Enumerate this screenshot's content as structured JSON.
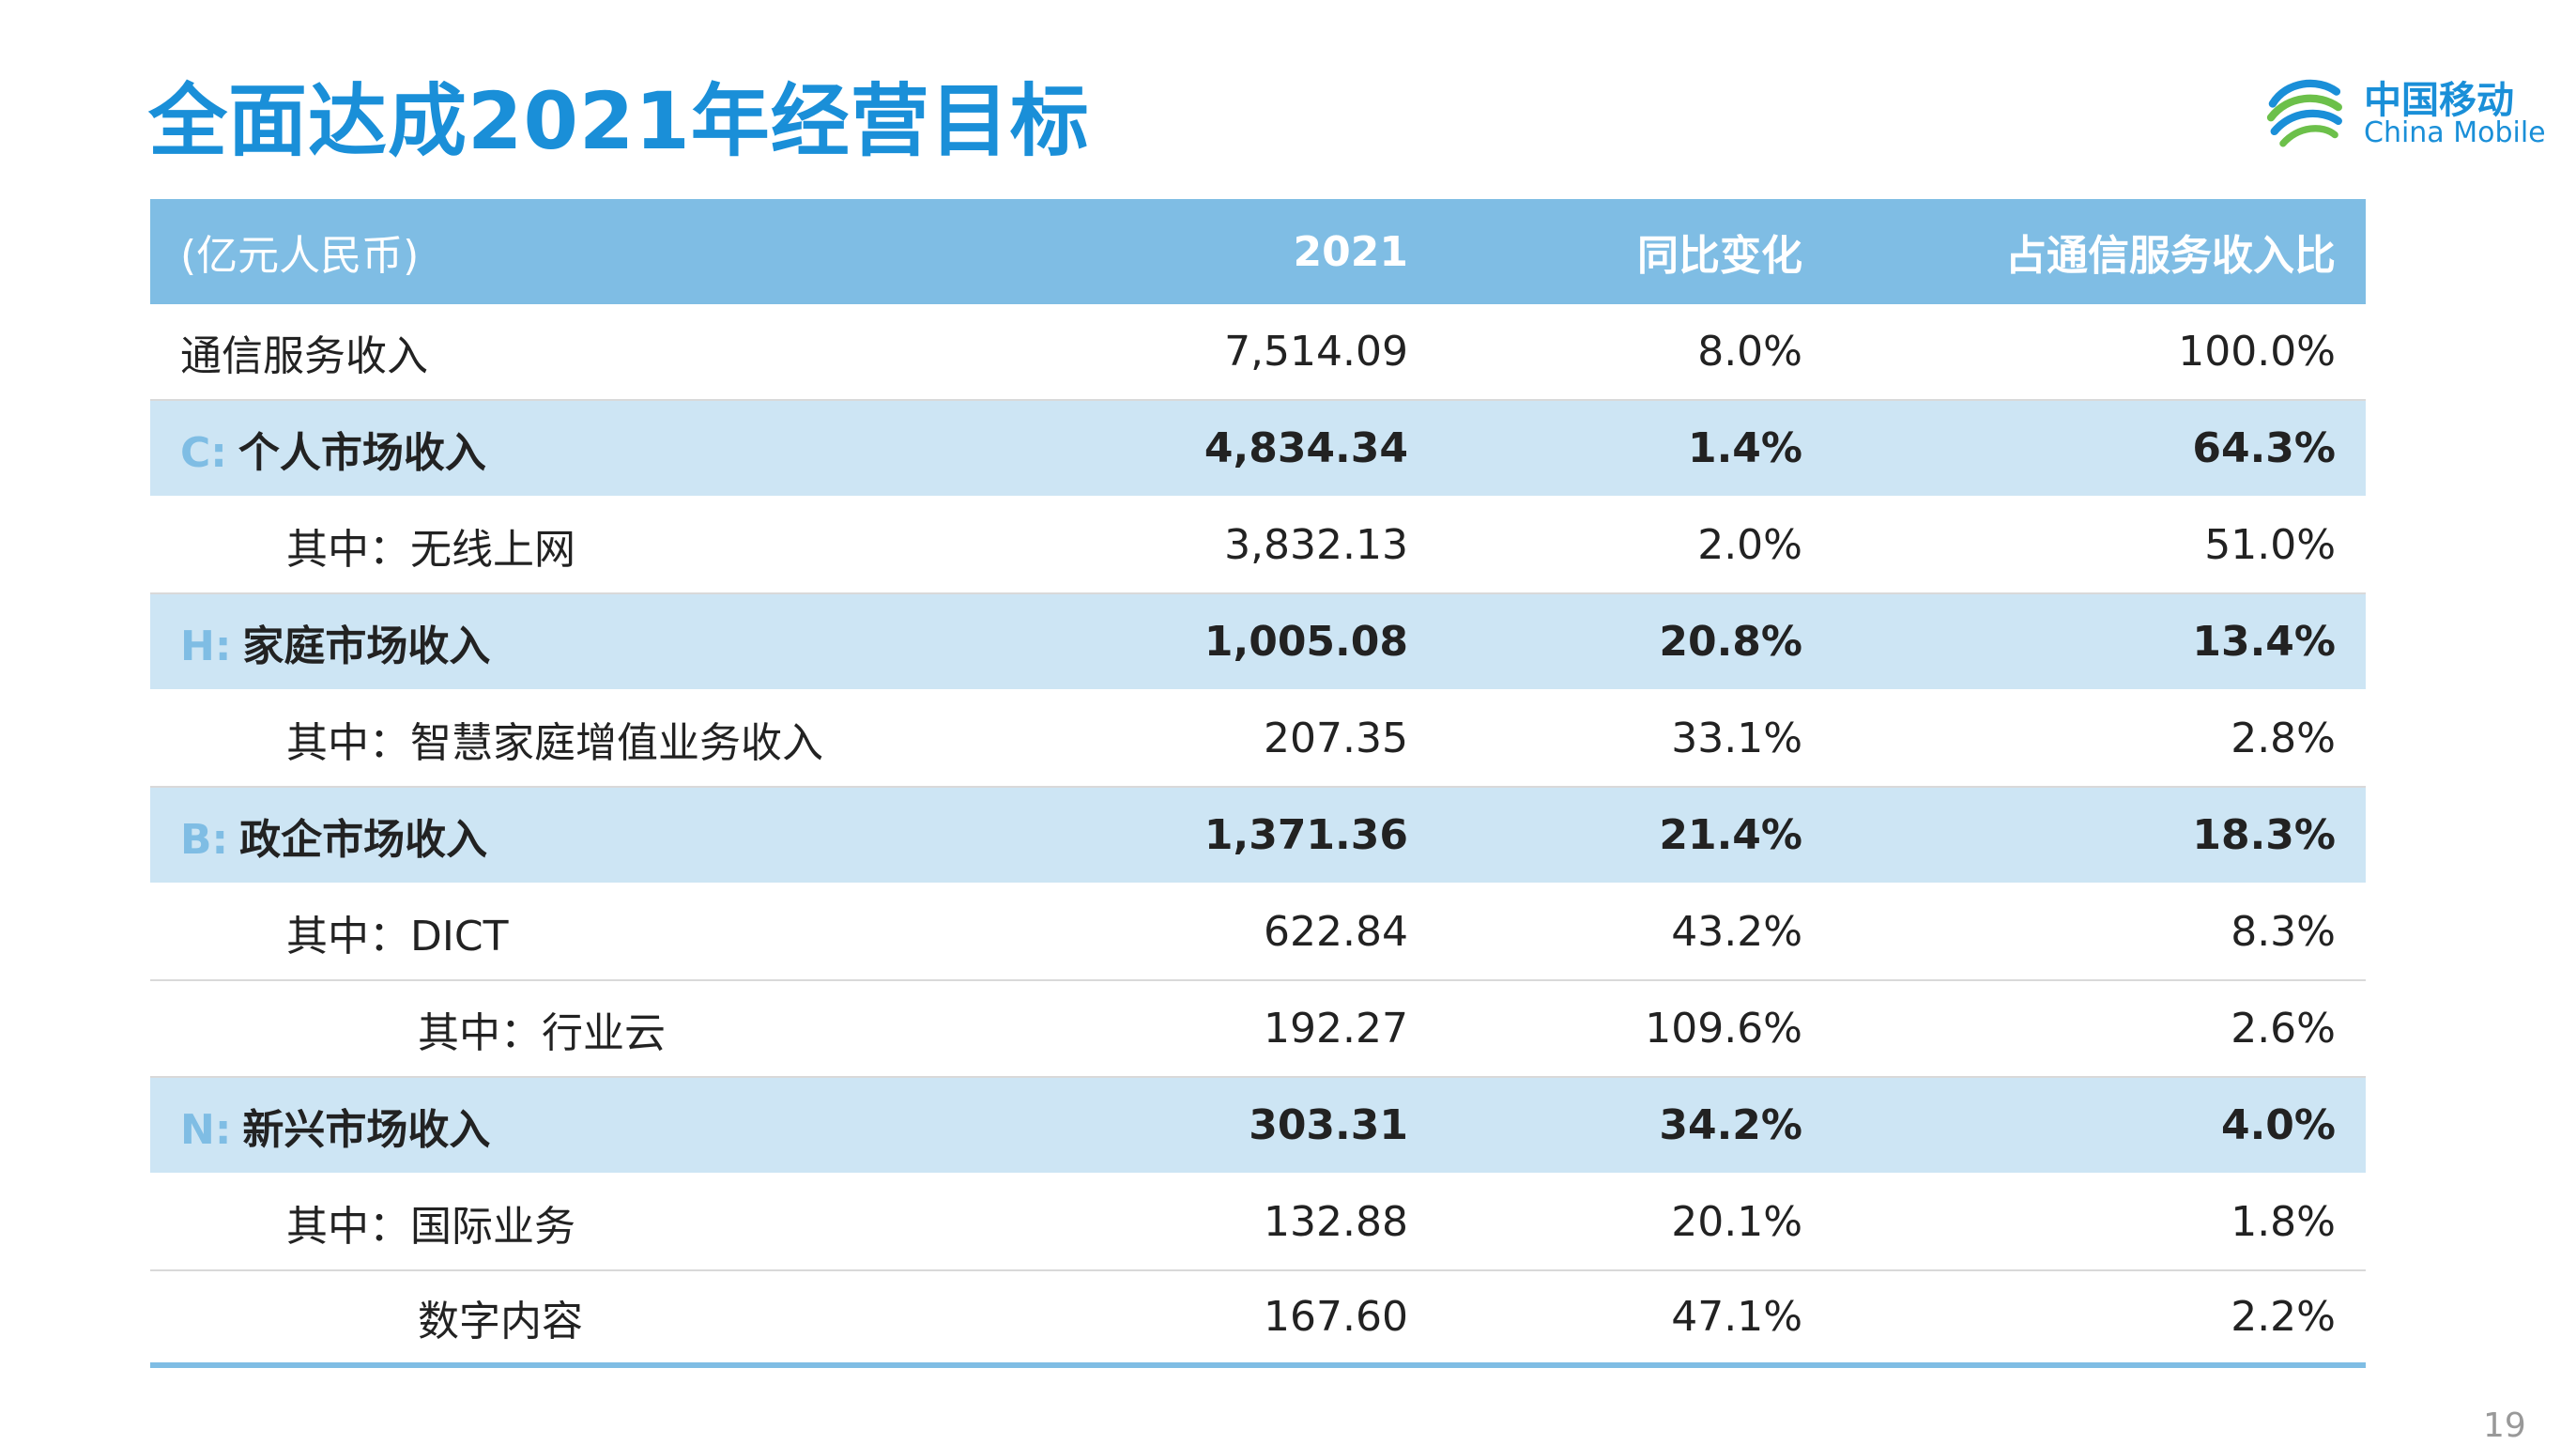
{
  "title": "全面达成2021年经营目标",
  "logo": {
    "cn": "中国移动",
    "en": "China Mobile",
    "color": "#1a8fd8"
  },
  "table": {
    "header": {
      "unit": "(亿元人民币)",
      "year": "2021",
      "yoy": "同比变化",
      "share": "占通信服务收入比"
    },
    "rows": [
      {
        "prefix": "",
        "label": "通信服务收入",
        "value": "7,514.09",
        "yoy": "8.0%",
        "share": "100.0%"
      },
      {
        "prefix": "C:",
        "label": "个人市场收入",
        "value": "4,834.34",
        "yoy": "1.4%",
        "share": "64.3%"
      },
      {
        "prefix": "",
        "label": "其中：无线上网",
        "value": "3,832.13",
        "yoy": "2.0%",
        "share": "51.0%"
      },
      {
        "prefix": "H:",
        "label": "家庭市场收入",
        "value": "1,005.08",
        "yoy": "20.8%",
        "share": "13.4%"
      },
      {
        "prefix": "",
        "label": "其中：智慧家庭增值业务收入",
        "value": "207.35",
        "yoy": "33.1%",
        "share": "2.8%"
      },
      {
        "prefix": "B:",
        "label": "政企市场收入",
        "value": "1,371.36",
        "yoy": "21.4%",
        "share": "18.3%"
      },
      {
        "prefix": "",
        "label": "其中：DICT",
        "value": "622.84",
        "yoy": "43.2%",
        "share": "8.3%"
      },
      {
        "prefix": "",
        "label": "其中：行业云",
        "value": "192.27",
        "yoy": "109.6%",
        "share": "2.6%"
      },
      {
        "prefix": "N:",
        "label": "新兴市场收入",
        "value": "303.31",
        "yoy": "34.2%",
        "share": "4.0%"
      },
      {
        "prefix": "",
        "label": "其中：国际业务",
        "value": "132.88",
        "yoy": "20.1%",
        "share": "1.8%"
      },
      {
        "prefix": "",
        "label": "数字内容",
        "value": "167.60",
        "yoy": "47.1%",
        "share": "2.2%"
      }
    ]
  },
  "colors": {
    "title": "#1a8fd8",
    "header_bg": "#7fbde4",
    "segment_bg": "#cde5f4"
  },
  "page_number": "19"
}
